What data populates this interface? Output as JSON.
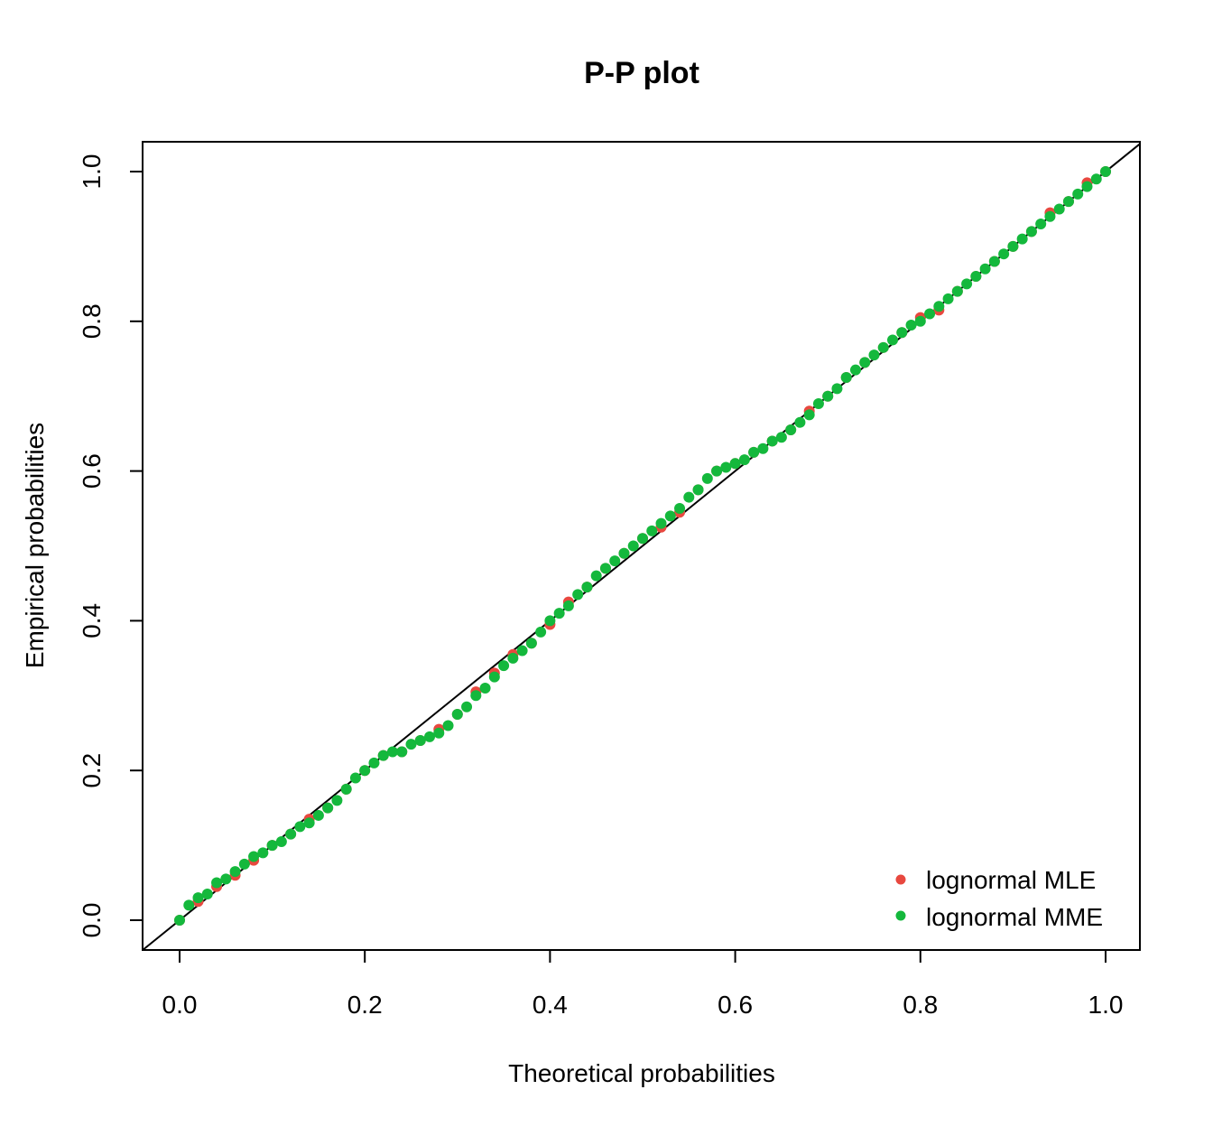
{
  "chart_data": {
    "type": "scatter",
    "title": "P-P plot",
    "xlabel": "Theoretical probabilities",
    "ylabel": "Empirical probabilities",
    "xlim": [
      0.0,
      1.0
    ],
    "ylim": [
      0.0,
      1.0
    ],
    "x_ticks": [
      "0.0",
      "0.2",
      "0.4",
      "0.6",
      "0.8",
      "1.0"
    ],
    "y_ticks": [
      "0.0",
      "0.2",
      "0.4",
      "0.6",
      "0.8",
      "1.0"
    ],
    "grid": false,
    "legend_position": "bottom-right",
    "reference_line": {
      "label": "",
      "from": [
        0.0,
        0.0
      ],
      "to": [
        1.0,
        1.0
      ],
      "color": "#000000"
    },
    "series": [
      {
        "name": "lognormal MLE",
        "color": "#e8483f",
        "points": [
          [
            0.0,
            0.0
          ],
          [
            0.02,
            0.025
          ],
          [
            0.04,
            0.045
          ],
          [
            0.06,
            0.06
          ],
          [
            0.08,
            0.08
          ],
          [
            0.1,
            0.1
          ],
          [
            0.12,
            0.115
          ],
          [
            0.14,
            0.135
          ],
          [
            0.16,
            0.15
          ],
          [
            0.18,
            0.175
          ],
          [
            0.2,
            0.2
          ],
          [
            0.22,
            0.22
          ],
          [
            0.24,
            0.225
          ],
          [
            0.26,
            0.24
          ],
          [
            0.28,
            0.255
          ],
          [
            0.3,
            0.275
          ],
          [
            0.32,
            0.305
          ],
          [
            0.34,
            0.33
          ],
          [
            0.36,
            0.355
          ],
          [
            0.38,
            0.37
          ],
          [
            0.4,
            0.395
          ],
          [
            0.42,
            0.425
          ],
          [
            0.44,
            0.445
          ],
          [
            0.46,
            0.47
          ],
          [
            0.48,
            0.49
          ],
          [
            0.5,
            0.51
          ],
          [
            0.52,
            0.525
          ],
          [
            0.54,
            0.545
          ],
          [
            0.56,
            0.575
          ],
          [
            0.58,
            0.6
          ],
          [
            0.6,
            0.61
          ],
          [
            0.62,
            0.625
          ],
          [
            0.64,
            0.64
          ],
          [
            0.66,
            0.655
          ],
          [
            0.68,
            0.68
          ],
          [
            0.7,
            0.7
          ],
          [
            0.72,
            0.725
          ],
          [
            0.74,
            0.745
          ],
          [
            0.76,
            0.765
          ],
          [
            0.78,
            0.785
          ],
          [
            0.8,
            0.805
          ],
          [
            0.82,
            0.815
          ],
          [
            0.84,
            0.84
          ],
          [
            0.86,
            0.86
          ],
          [
            0.88,
            0.88
          ],
          [
            0.9,
            0.9
          ],
          [
            0.92,
            0.92
          ],
          [
            0.94,
            0.945
          ],
          [
            0.96,
            0.96
          ],
          [
            0.98,
            0.985
          ],
          [
            1.0,
            1.0
          ]
        ]
      },
      {
        "name": "lognormal MME",
        "color": "#14b83c",
        "points": [
          [
            0.0,
            0.0
          ],
          [
            0.01,
            0.02
          ],
          [
            0.02,
            0.03
          ],
          [
            0.03,
            0.035
          ],
          [
            0.04,
            0.05
          ],
          [
            0.05,
            0.055
          ],
          [
            0.06,
            0.065
          ],
          [
            0.07,
            0.075
          ],
          [
            0.08,
            0.085
          ],
          [
            0.09,
            0.09
          ],
          [
            0.1,
            0.1
          ],
          [
            0.11,
            0.105
          ],
          [
            0.12,
            0.115
          ],
          [
            0.13,
            0.125
          ],
          [
            0.14,
            0.13
          ],
          [
            0.15,
            0.14
          ],
          [
            0.16,
            0.15
          ],
          [
            0.17,
            0.16
          ],
          [
            0.18,
            0.175
          ],
          [
            0.19,
            0.19
          ],
          [
            0.2,
            0.2
          ],
          [
            0.21,
            0.21
          ],
          [
            0.22,
            0.22
          ],
          [
            0.23,
            0.225
          ],
          [
            0.24,
            0.225
          ],
          [
            0.25,
            0.235
          ],
          [
            0.26,
            0.24
          ],
          [
            0.27,
            0.245
          ],
          [
            0.28,
            0.25
          ],
          [
            0.29,
            0.26
          ],
          [
            0.3,
            0.275
          ],
          [
            0.31,
            0.285
          ],
          [
            0.32,
            0.3
          ],
          [
            0.33,
            0.31
          ],
          [
            0.34,
            0.325
          ],
          [
            0.35,
            0.34
          ],
          [
            0.36,
            0.35
          ],
          [
            0.37,
            0.36
          ],
          [
            0.38,
            0.37
          ],
          [
            0.39,
            0.385
          ],
          [
            0.4,
            0.4
          ],
          [
            0.41,
            0.41
          ],
          [
            0.42,
            0.42
          ],
          [
            0.43,
            0.435
          ],
          [
            0.44,
            0.445
          ],
          [
            0.45,
            0.46
          ],
          [
            0.46,
            0.47
          ],
          [
            0.47,
            0.48
          ],
          [
            0.48,
            0.49
          ],
          [
            0.49,
            0.5
          ],
          [
            0.5,
            0.51
          ],
          [
            0.51,
            0.52
          ],
          [
            0.52,
            0.53
          ],
          [
            0.53,
            0.54
          ],
          [
            0.54,
            0.55
          ],
          [
            0.55,
            0.565
          ],
          [
            0.56,
            0.575
          ],
          [
            0.57,
            0.59
          ],
          [
            0.58,
            0.6
          ],
          [
            0.59,
            0.605
          ],
          [
            0.6,
            0.61
          ],
          [
            0.61,
            0.615
          ],
          [
            0.62,
            0.625
          ],
          [
            0.63,
            0.63
          ],
          [
            0.64,
            0.64
          ],
          [
            0.65,
            0.645
          ],
          [
            0.66,
            0.655
          ],
          [
            0.67,
            0.665
          ],
          [
            0.68,
            0.675
          ],
          [
            0.69,
            0.69
          ],
          [
            0.7,
            0.7
          ],
          [
            0.71,
            0.71
          ],
          [
            0.72,
            0.725
          ],
          [
            0.73,
            0.735
          ],
          [
            0.74,
            0.745
          ],
          [
            0.75,
            0.755
          ],
          [
            0.76,
            0.765
          ],
          [
            0.77,
            0.775
          ],
          [
            0.78,
            0.785
          ],
          [
            0.79,
            0.795
          ],
          [
            0.8,
            0.8
          ],
          [
            0.81,
            0.81
          ],
          [
            0.82,
            0.82
          ],
          [
            0.83,
            0.83
          ],
          [
            0.84,
            0.84
          ],
          [
            0.85,
            0.85
          ],
          [
            0.86,
            0.86
          ],
          [
            0.87,
            0.87
          ],
          [
            0.88,
            0.88
          ],
          [
            0.89,
            0.89
          ],
          [
            0.9,
            0.9
          ],
          [
            0.91,
            0.91
          ],
          [
            0.92,
            0.92
          ],
          [
            0.93,
            0.93
          ],
          [
            0.94,
            0.94
          ],
          [
            0.95,
            0.95
          ],
          [
            0.96,
            0.96
          ],
          [
            0.97,
            0.97
          ],
          [
            0.98,
            0.98
          ],
          [
            0.99,
            0.99
          ],
          [
            1.0,
            1.0
          ]
        ]
      }
    ]
  }
}
